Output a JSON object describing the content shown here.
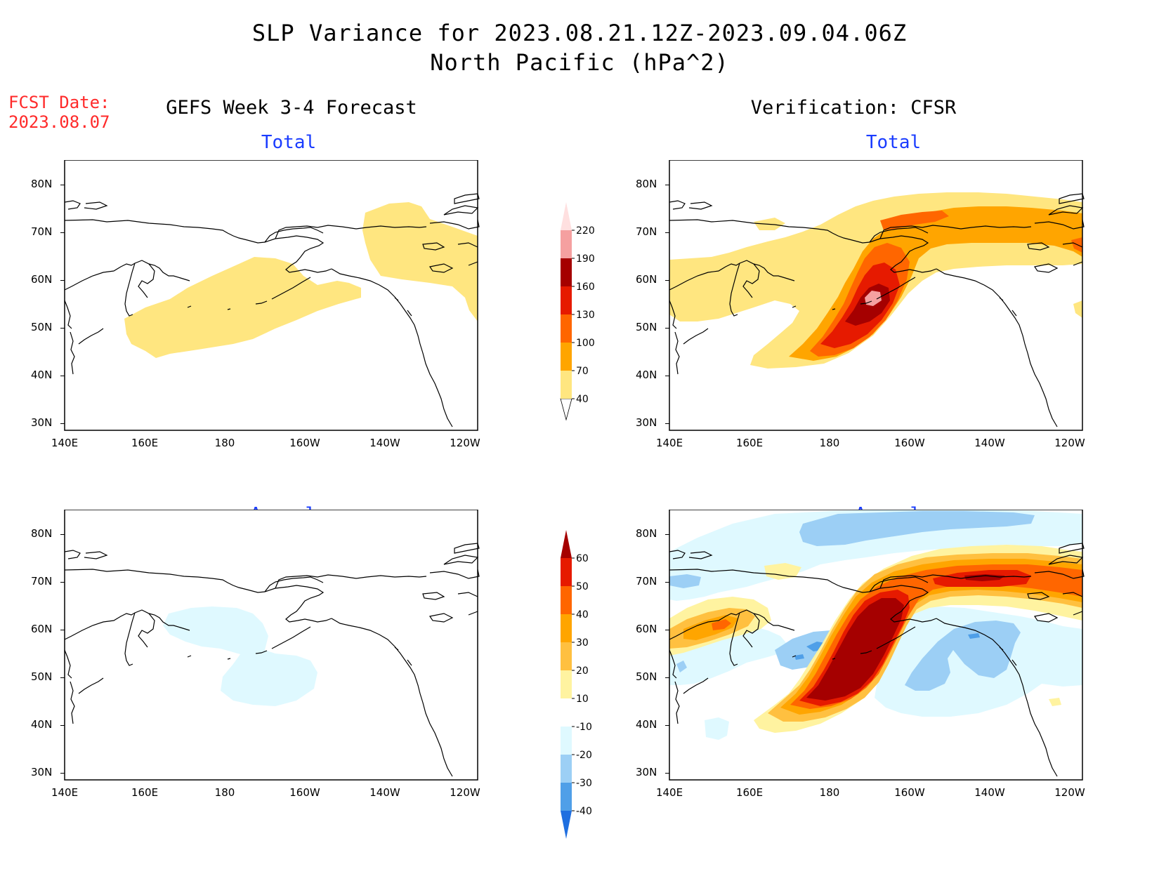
{
  "header": {
    "title_line1": "SLP Variance for 2023.08.21.12Z-2023.09.04.06Z",
    "title_line2": "North Pacific (hPa^2)",
    "fcst_label": "FCST Date:",
    "fcst_date": "2023.08.07",
    "left_column": "GEFS Week 3-4 Forecast",
    "right_column": "Verification: CFSR"
  },
  "panels": {
    "top_left": "Total",
    "top_right": "Total",
    "bottom_left": "Anomaly",
    "bottom_right": "Anomaly"
  },
  "axes": {
    "lat_labels": [
      "80N",
      "70N",
      "60N",
      "50N",
      "40N",
      "30N"
    ],
    "lon_labels": [
      "140E",
      "160E",
      "180",
      "160W",
      "140W",
      "120W"
    ]
  },
  "colorbar_total": {
    "levels": [
      "40",
      "70",
      "100",
      "130",
      "160",
      "190",
      "220"
    ],
    "colors": [
      "#ffe680",
      "#ffa500",
      "#ff6600",
      "#e61a00",
      "#a50000",
      "#f5a0a0",
      "#ffe0e0"
    ]
  },
  "colorbar_anomaly": {
    "levels": [
      "60",
      "50",
      "40",
      "30",
      "20",
      "10",
      "-10",
      "-20",
      "-30",
      "-40"
    ],
    "colors": [
      "#a50000",
      "#e61a00",
      "#ff6600",
      "#ffa500",
      "#ffc040",
      "#fff3a0",
      "#ffffff",
      "#dff9ff",
      "#9ccff5",
      "#4f9fe8",
      "#1f6fe0"
    ]
  }
}
